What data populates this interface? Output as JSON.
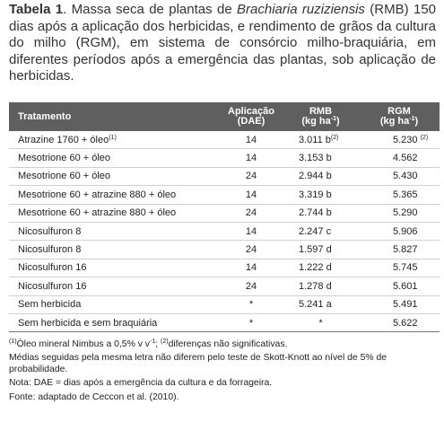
{
  "caption": [
    {
      "text": "Tabela 1",
      "bold": true
    },
    {
      "text": ". Massa seca de plantas de "
    },
    {
      "text": "Brachiaria ruziziensis",
      "italic": true
    },
    {
      "text": " (RMB) 150 dias após a aplicação dos herbicidas, e rendimento de grãos da cultura do milho (RGM), em sistema de consórcio milho-braquiária, em diferentes períodos após a emergência das plantas, sob aplicação de herbicidas."
    }
  ],
  "table": {
    "header": [
      [
        {
          "text": "Tratamento"
        }
      ],
      [
        {
          "text": "Aplicação"
        },
        {
          "text": "(DAE)",
          "br": true
        }
      ],
      [
        {
          "text": "RMB"
        },
        {
          "text": "(kg ha",
          "br": true
        },
        {
          "text": "-1",
          "sup": true
        },
        {
          "text": ")"
        }
      ],
      [
        {
          "text": "RGM"
        },
        {
          "text": "(kg ha",
          "br": true
        },
        {
          "text": "-1",
          "sup": true
        },
        {
          "text": ")"
        }
      ]
    ],
    "rows": [
      [
        [
          {
            "text": "Atrazine 1760 + óleo"
          },
          {
            "text": "(1)",
            "sup": true
          }
        ],
        "14",
        [
          {
            "text": "3.011 b"
          },
          {
            "text": "(2)",
            "sup": true
          }
        ],
        [
          {
            "text": "5.230 "
          },
          {
            "text": "(2)",
            "sup": true
          }
        ]
      ],
      [
        "Mesotrione 60 + óleo",
        "14",
        "3.153 b",
        "4.562"
      ],
      [
        "Mesotrione 60 + óleo",
        "24",
        "2.944 b",
        "5.430"
      ],
      [
        "Mesotrione 60 + atrazine 880 + óleo",
        "14",
        "3.319 b",
        "5.365"
      ],
      [
        "Mesotrione 60 + atrazine 880 + óleo",
        "24",
        "2.744 b",
        "5.290"
      ],
      [
        "Nicosulfuron 8",
        "14",
        "2.247 c",
        "5.906"
      ],
      [
        "Nicosulfuron 8",
        "24",
        "1.597 d",
        "5.827"
      ],
      [
        "Nicosulfuron 16",
        "14",
        "1.222 d",
        "5.745"
      ],
      [
        "Nicosulfuron 16",
        "24",
        "1.278 d",
        "5.601"
      ],
      [
        "Sem herbicida",
        "*",
        "5.241 a",
        "5.491"
      ],
      [
        "Sem herbicida e sem braquiária",
        "*",
        "*",
        "5.622"
      ]
    ]
  },
  "notes": [
    [
      {
        "text": "(1)",
        "sup": true
      },
      {
        "text": "Óleo mineral Nimbus a 0,5% v v"
      },
      {
        "text": "-1",
        "sup": true
      },
      {
        "text": "; "
      },
      {
        "text": "(2)",
        "sup": true
      },
      {
        "text": "diferenças não significativas."
      }
    ],
    "Médias seguidas pela mesma letra não diferem pelo teste de Skott-Knott ao nível de 5% de probabilidade.",
    "Nota: DAE = dias após a emergência da cultura e da forrageira.",
    "Fonte: adaptado de Ceccon et al. (2010)."
  ]
}
